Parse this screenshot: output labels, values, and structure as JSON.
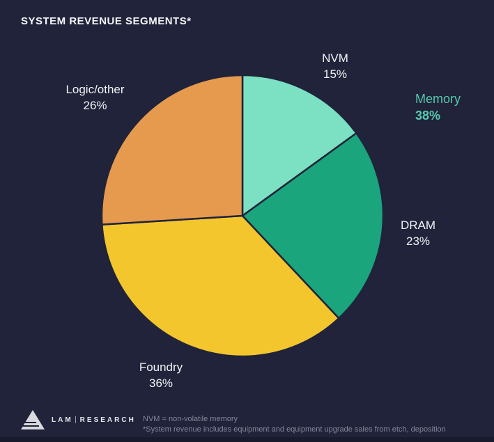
{
  "title": "SYSTEM REVENUE SEGMENTS*",
  "colors": {
    "background": "#20233a",
    "nvm": "#7ce0c2",
    "dram": "#1ba57d",
    "foundry": "#f3c62d",
    "logic_other": "#e59a4e",
    "accent_teal": "#56c9ad",
    "label_text": "#f2f3f5",
    "footnote_text": "#858899"
  },
  "chart_data": {
    "type": "pie",
    "title": "SYSTEM REVENUE SEGMENTS*",
    "direction": "clockwise",
    "start_angle_deg": 0,
    "legend_position": "around-slices",
    "slices": [
      {
        "label": "NVM",
        "value": 15,
        "pct": "15%",
        "color_key": "nvm"
      },
      {
        "label": "DRAM",
        "value": 23,
        "pct": "23%",
        "color_key": "dram"
      },
      {
        "label": "Foundry",
        "value": 36,
        "pct": "36%",
        "color_key": "foundry"
      },
      {
        "label": "Logic/other",
        "value": 26,
        "pct": "26%",
        "color_key": "logic_other"
      }
    ],
    "annotations": [
      {
        "label": "Memory",
        "value": "38%"
      }
    ]
  },
  "memory_callout": {
    "label": "Memory",
    "value": "38%"
  },
  "footer": {
    "logo_word_1": "LAM",
    "logo_word_2": "RESEARCH",
    "note_1": "NVM = non-volatile memory",
    "note_2": "*System revenue includes equipment and equipment upgrade sales from etch, deposition"
  }
}
